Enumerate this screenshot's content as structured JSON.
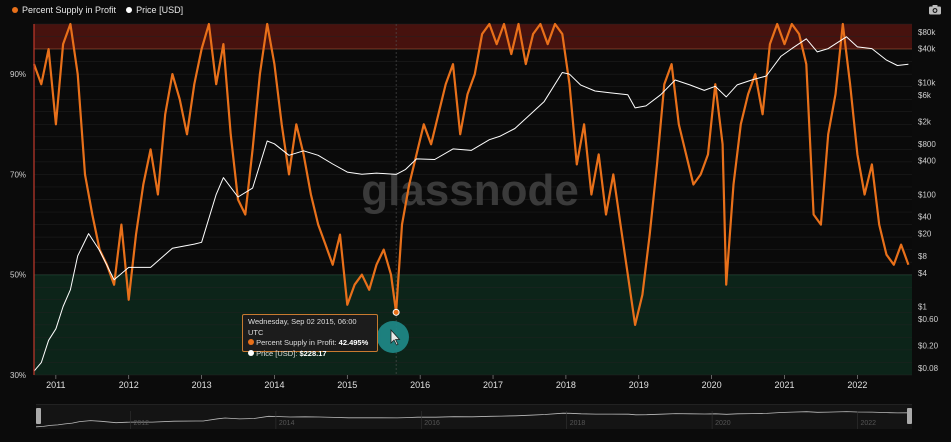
{
  "legend": {
    "items": [
      {
        "label": "Percent Supply in Profit",
        "color": "#e8701a"
      },
      {
        "label": "Price [USD]",
        "color": "#ffffff"
      }
    ]
  },
  "toolbar": {
    "camera_icon": "camera-icon"
  },
  "watermark": "glassnode",
  "tooltip": {
    "date": "Wednesday, Sep 02 2015, 06:00 UTC",
    "psip_label": "Percent Supply in Profit:",
    "psip_value": "42.495%",
    "price_label": "Price [USD]:",
    "price_value": "$228.17"
  },
  "navigator": {
    "years": [
      "2012",
      "2014",
      "2016",
      "2018",
      "2020",
      "2022"
    ]
  },
  "chart_data": {
    "type": "line",
    "x_ticks": [
      "2011",
      "2012",
      "2013",
      "2014",
      "2015",
      "2016",
      "2017",
      "2018",
      "2019",
      "2020",
      "2021",
      "2022"
    ],
    "y_left_ticks": [
      "90%",
      "70%",
      "50%",
      "30%"
    ],
    "y_right_ticks": [
      "$80k",
      "$40k",
      "$10k",
      "$6k",
      "$2k",
      "$800",
      "$400",
      "$100",
      "$40",
      "$20",
      "$8",
      "$4",
      "$1",
      "$0.60",
      "$0.20",
      "$0.08"
    ],
    "y_left_range": [
      30,
      100
    ],
    "bands": [
      {
        "from": 95,
        "to": 100,
        "color": "#7a1a12"
      },
      {
        "from": 30,
        "to": 50,
        "color": "#0f3a26"
      }
    ],
    "series": [
      {
        "name": "Percent Supply in Profit",
        "color": "#e8701a",
        "points": [
          [
            2010.7,
            92
          ],
          [
            2010.8,
            88
          ],
          [
            2010.9,
            95
          ],
          [
            2011.0,
            80
          ],
          [
            2011.1,
            96
          ],
          [
            2011.2,
            100
          ],
          [
            2011.3,
            90
          ],
          [
            2011.4,
            70
          ],
          [
            2011.5,
            62
          ],
          [
            2011.6,
            55
          ],
          [
            2011.7,
            52
          ],
          [
            2011.8,
            48
          ],
          [
            2011.9,
            60
          ],
          [
            2012.0,
            45
          ],
          [
            2012.1,
            58
          ],
          [
            2012.2,
            68
          ],
          [
            2012.3,
            75
          ],
          [
            2012.4,
            66
          ],
          [
            2012.5,
            82
          ],
          [
            2012.6,
            90
          ],
          [
            2012.7,
            85
          ],
          [
            2012.8,
            78
          ],
          [
            2012.9,
            88
          ],
          [
            2013.0,
            95
          ],
          [
            2013.1,
            100
          ],
          [
            2013.2,
            88
          ],
          [
            2013.3,
            96
          ],
          [
            2013.4,
            78
          ],
          [
            2013.5,
            65
          ],
          [
            2013.6,
            62
          ],
          [
            2013.7,
            75
          ],
          [
            2013.8,
            90
          ],
          [
            2013.9,
            100
          ],
          [
            2014.0,
            92
          ],
          [
            2014.1,
            80
          ],
          [
            2014.2,
            70
          ],
          [
            2014.3,
            80
          ],
          [
            2014.4,
            74
          ],
          [
            2014.5,
            66
          ],
          [
            2014.6,
            60
          ],
          [
            2014.7,
            56
          ],
          [
            2014.8,
            52
          ],
          [
            2014.9,
            58
          ],
          [
            2015.0,
            44
          ],
          [
            2015.1,
            48
          ],
          [
            2015.2,
            50
          ],
          [
            2015.3,
            47
          ],
          [
            2015.4,
            52
          ],
          [
            2015.5,
            55
          ],
          [
            2015.6,
            50
          ],
          [
            2015.67,
            42.5
          ],
          [
            2015.75,
            60
          ],
          [
            2015.85,
            68
          ],
          [
            2015.95,
            74
          ],
          [
            2016.05,
            80
          ],
          [
            2016.15,
            76
          ],
          [
            2016.25,
            82
          ],
          [
            2016.35,
            88
          ],
          [
            2016.45,
            92
          ],
          [
            2016.55,
            78
          ],
          [
            2016.65,
            86
          ],
          [
            2016.75,
            90
          ],
          [
            2016.85,
            98
          ],
          [
            2016.95,
            100
          ],
          [
            2017.05,
            96
          ],
          [
            2017.15,
            100
          ],
          [
            2017.25,
            94
          ],
          [
            2017.35,
            100
          ],
          [
            2017.45,
            92
          ],
          [
            2017.55,
            98
          ],
          [
            2017.65,
            100
          ],
          [
            2017.75,
            96
          ],
          [
            2017.85,
            100
          ],
          [
            2017.95,
            98
          ],
          [
            2018.05,
            88
          ],
          [
            2018.15,
            72
          ],
          [
            2018.25,
            80
          ],
          [
            2018.35,
            66
          ],
          [
            2018.45,
            74
          ],
          [
            2018.55,
            62
          ],
          [
            2018.65,
            70
          ],
          [
            2018.75,
            60
          ],
          [
            2018.85,
            50
          ],
          [
            2018.95,
            40
          ],
          [
            2019.05,
            46
          ],
          [
            2019.15,
            58
          ],
          [
            2019.25,
            72
          ],
          [
            2019.35,
            88
          ],
          [
            2019.45,
            92
          ],
          [
            2019.55,
            80
          ],
          [
            2019.65,
            74
          ],
          [
            2019.75,
            68
          ],
          [
            2019.85,
            70
          ],
          [
            2019.95,
            74
          ],
          [
            2020.05,
            88
          ],
          [
            2020.15,
            76
          ],
          [
            2020.2,
            48
          ],
          [
            2020.3,
            68
          ],
          [
            2020.4,
            80
          ],
          [
            2020.5,
            86
          ],
          [
            2020.6,
            90
          ],
          [
            2020.7,
            82
          ],
          [
            2020.8,
            96
          ],
          [
            2020.9,
            100
          ],
          [
            2021.0,
            96
          ],
          [
            2021.1,
            100
          ],
          [
            2021.2,
            98
          ],
          [
            2021.3,
            92
          ],
          [
            2021.4,
            62
          ],
          [
            2021.5,
            60
          ],
          [
            2021.6,
            78
          ],
          [
            2021.7,
            86
          ],
          [
            2021.8,
            100
          ],
          [
            2021.9,
            88
          ],
          [
            2022.0,
            74
          ],
          [
            2022.1,
            66
          ],
          [
            2022.2,
            72
          ],
          [
            2022.3,
            60
          ],
          [
            2022.4,
            54
          ],
          [
            2022.5,
            52
          ],
          [
            2022.6,
            56
          ],
          [
            2022.7,
            52
          ]
        ]
      },
      {
        "name": "Price [USD]",
        "color": "#ffffff",
        "points": [
          [
            2010.7,
            0.07
          ],
          [
            2010.8,
            0.1
          ],
          [
            2010.9,
            0.25
          ],
          [
            2011.0,
            0.4
          ],
          [
            2011.1,
            1
          ],
          [
            2011.2,
            2
          ],
          [
            2011.3,
            8
          ],
          [
            2011.45,
            20
          ],
          [
            2011.6,
            10
          ],
          [
            2011.8,
            3
          ],
          [
            2012.0,
            5
          ],
          [
            2012.3,
            5
          ],
          [
            2012.6,
            11
          ],
          [
            2012.9,
            13
          ],
          [
            2013.0,
            14
          ],
          [
            2013.2,
            100
          ],
          [
            2013.3,
            200
          ],
          [
            2013.5,
            90
          ],
          [
            2013.7,
            130
          ],
          [
            2013.9,
            900
          ],
          [
            2014.0,
            800
          ],
          [
            2014.2,
            500
          ],
          [
            2014.4,
            600
          ],
          [
            2014.6,
            500
          ],
          [
            2014.8,
            350
          ],
          [
            2015.0,
            250
          ],
          [
            2015.2,
            230
          ],
          [
            2015.4,
            240
          ],
          [
            2015.67,
            228.17
          ],
          [
            2015.8,
            280
          ],
          [
            2015.95,
            430
          ],
          [
            2016.2,
            420
          ],
          [
            2016.45,
            650
          ],
          [
            2016.7,
            610
          ],
          [
            2016.95,
            950
          ],
          [
            2017.1,
            1100
          ],
          [
            2017.3,
            1500
          ],
          [
            2017.5,
            2600
          ],
          [
            2017.7,
            4500
          ],
          [
            2017.95,
            15000
          ],
          [
            2018.05,
            14000
          ],
          [
            2018.2,
            9000
          ],
          [
            2018.4,
            7000
          ],
          [
            2018.6,
            6500
          ],
          [
            2018.85,
            6000
          ],
          [
            2018.95,
            3500
          ],
          [
            2019.1,
            3800
          ],
          [
            2019.3,
            6000
          ],
          [
            2019.5,
            11000
          ],
          [
            2019.7,
            9000
          ],
          [
            2019.9,
            7200
          ],
          [
            2020.05,
            8500
          ],
          [
            2020.2,
            5500
          ],
          [
            2020.35,
            9000
          ],
          [
            2020.55,
            11000
          ],
          [
            2020.75,
            13000
          ],
          [
            2020.95,
            29000
          ],
          [
            2021.1,
            40000
          ],
          [
            2021.3,
            60000
          ],
          [
            2021.45,
            35000
          ],
          [
            2021.6,
            40000
          ],
          [
            2021.85,
            65000
          ],
          [
            2022.0,
            43000
          ],
          [
            2022.2,
            40000
          ],
          [
            2022.4,
            25000
          ],
          [
            2022.55,
            20000
          ],
          [
            2022.7,
            21000
          ]
        ]
      }
    ]
  }
}
